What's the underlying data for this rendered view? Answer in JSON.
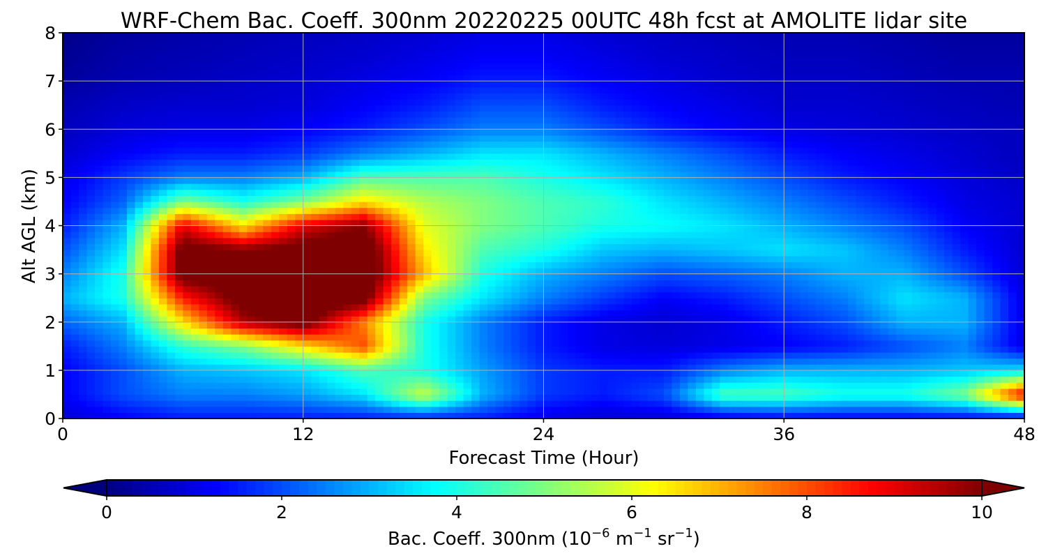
{
  "chart_data": {
    "type": "heatmap",
    "title": "WRF-Chem Bac. Coeff. 300nm  20220225 00UTC 48h fcst at AMOLITE lidar site",
    "xlabel": "Forecast Time (Hour)",
    "ylabel": "Alt AGL (km)",
    "xlim": [
      0,
      48
    ],
    "ylim": [
      0,
      8
    ],
    "x_ticks": [
      0,
      12,
      24,
      36,
      48
    ],
    "x_tick_labels": [
      "0",
      "12",
      "24",
      "36",
      "48"
    ],
    "y_ticks": [
      0,
      1,
      2,
      3,
      4,
      5,
      6,
      7,
      8
    ],
    "y_tick_labels": [
      "0",
      "1",
      "2",
      "3",
      "4",
      "5",
      "6",
      "7",
      "8"
    ],
    "grid": true,
    "colormap": "jet",
    "colorbar": {
      "label_prefix": "Bac. Coeff. 300nm  (10",
      "label_exp1": "−6",
      "label_mid": " m",
      "label_exp2": "−1",
      "label_mid2": " sr",
      "label_exp3": "−1",
      "label_suffix": ")",
      "min": 0,
      "max": 10,
      "ticks": [
        0,
        2,
        4,
        6,
        8,
        10
      ],
      "tick_labels": [
        "0",
        "2",
        "4",
        "6",
        "8",
        "10"
      ],
      "extend": "both",
      "under_color": "#00007f",
      "over_color": "#7f0000"
    },
    "x_hours": [
      0,
      3,
      6,
      9,
      12,
      15,
      18,
      21,
      24,
      27,
      30,
      33,
      36,
      39,
      42,
      45,
      48
    ],
    "altitudes_km": [
      0,
      0.5,
      1,
      1.5,
      2,
      2.5,
      3,
      3.5,
      4,
      4.5,
      5,
      5.5,
      6,
      6.5,
      7,
      7.5,
      8
    ],
    "values": [
      [
        0.8,
        1.2,
        1.5,
        1.5,
        1.5,
        1.5,
        1.5,
        1.5,
        1.0,
        0.8,
        0.8,
        1.0,
        1.2,
        1.2,
        1.2,
        1.2,
        1.0
      ],
      [
        1.2,
        2.0,
        2.5,
        2.5,
        2.8,
        3.5,
        5.8,
        3.0,
        1.8,
        1.5,
        2.0,
        4.5,
        4.5,
        4.0,
        4.0,
        5.0,
        9.0
      ],
      [
        1.2,
        2.0,
        3.0,
        3.2,
        3.5,
        4.5,
        4.0,
        2.8,
        1.8,
        1.5,
        1.5,
        2.5,
        3.0,
        3.0,
        3.0,
        3.2,
        3.5
      ],
      [
        1.5,
        2.5,
        4.2,
        5.0,
        6.5,
        8.0,
        4.0,
        2.5,
        1.5,
        1.0,
        0.9,
        1.0,
        1.2,
        1.5,
        2.0,
        2.5,
        1.0
      ],
      [
        2.2,
        3.0,
        6.5,
        9.5,
        10.5,
        7.5,
        4.0,
        2.5,
        1.5,
        1.0,
        0.8,
        1.0,
        1.5,
        2.0,
        3.0,
        3.0,
        1.0
      ],
      [
        3.0,
        4.0,
        8.5,
        10.5,
        11.0,
        10.5,
        5.0,
        3.5,
        2.5,
        1.8,
        1.2,
        1.5,
        2.0,
        2.5,
        3.5,
        3.0,
        1.0
      ],
      [
        2.5,
        4.0,
        10.5,
        10.5,
        10.5,
        11.0,
        7.0,
        4.0,
        3.0,
        2.5,
        2.0,
        2.2,
        2.5,
        3.0,
        3.0,
        2.0,
        0.8
      ],
      [
        2.0,
        3.5,
        10.5,
        10.0,
        10.5,
        11.0,
        6.5,
        4.5,
        4.0,
        3.2,
        3.0,
        3.2,
        3.5,
        3.2,
        2.5,
        1.5,
        0.8
      ],
      [
        1.5,
        3.0,
        9.0,
        6.5,
        9.0,
        10.0,
        6.0,
        5.0,
        4.5,
        4.0,
        3.8,
        3.5,
        3.0,
        2.5,
        2.0,
        1.2,
        0.8
      ],
      [
        1.2,
        2.2,
        5.0,
        4.0,
        5.0,
        6.5,
        5.5,
        5.0,
        4.5,
        4.2,
        3.5,
        3.0,
        2.5,
        2.0,
        1.5,
        1.0,
        0.8
      ],
      [
        1.0,
        1.8,
        2.5,
        2.5,
        3.0,
        4.5,
        4.5,
        4.5,
        4.0,
        3.5,
        3.0,
        2.5,
        2.0,
        1.5,
        1.2,
        0.9,
        0.7
      ],
      [
        0.8,
        1.2,
        1.5,
        1.5,
        1.8,
        2.5,
        3.0,
        3.5,
        3.5,
        3.0,
        2.5,
        2.0,
        1.5,
        1.2,
        1.0,
        0.8,
        0.6
      ],
      [
        0.6,
        0.9,
        1.0,
        1.0,
        1.2,
        1.5,
        2.0,
        2.5,
        2.5,
        2.0,
        1.5,
        1.2,
        1.0,
        0.9,
        0.8,
        0.7,
        0.6
      ],
      [
        0.5,
        0.7,
        0.8,
        0.8,
        0.9,
        1.2,
        1.5,
        2.0,
        2.0,
        1.5,
        1.2,
        1.0,
        0.8,
        0.8,
        0.7,
        0.6,
        0.5
      ],
      [
        0.3,
        0.5,
        0.6,
        0.7,
        0.8,
        1.0,
        1.2,
        1.5,
        1.5,
        1.2,
        1.0,
        0.8,
        0.7,
        0.7,
        0.6,
        0.5,
        0.5
      ],
      [
        0.2,
        0.4,
        0.5,
        0.6,
        0.7,
        0.8,
        1.0,
        1.2,
        1.2,
        1.0,
        0.8,
        0.7,
        0.6,
        0.6,
        0.5,
        0.4,
        0.4
      ],
      [
        0.1,
        0.3,
        0.4,
        0.5,
        0.6,
        0.7,
        0.8,
        1.0,
        1.0,
        0.8,
        0.7,
        0.6,
        0.5,
        0.5,
        0.4,
        0.3,
        0.3
      ]
    ]
  }
}
